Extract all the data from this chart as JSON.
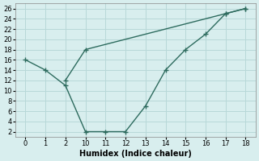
{
  "xlabel": "Humidex (Indice chaleur)",
  "line1_x": [
    0,
    1,
    2,
    10,
    11,
    12,
    13,
    14,
    15,
    16,
    17,
    18
  ],
  "line1_y": [
    16,
    14,
    11,
    2,
    2,
    2,
    7,
    14,
    18,
    21,
    25,
    26
  ],
  "line2_x": [
    2,
    10,
    17,
    18
  ],
  "line2_y": [
    12,
    18,
    25,
    26
  ],
  "line_color": "#2d6b5e",
  "bg_color": "#d8eeee",
  "grid_color": "#b8d8d8",
  "ylim": [
    1,
    27
  ],
  "xtick_labels": [
    "0",
    "1",
    "2",
    "10",
    "11",
    "12",
    "13",
    "14",
    "15",
    "16",
    "17",
    "18"
  ],
  "xtick_vals": [
    0,
    1,
    2,
    10,
    11,
    12,
    13,
    14,
    15,
    16,
    17,
    18
  ],
  "yticks": [
    2,
    4,
    6,
    8,
    10,
    12,
    14,
    16,
    18,
    20,
    22,
    24,
    26
  ]
}
